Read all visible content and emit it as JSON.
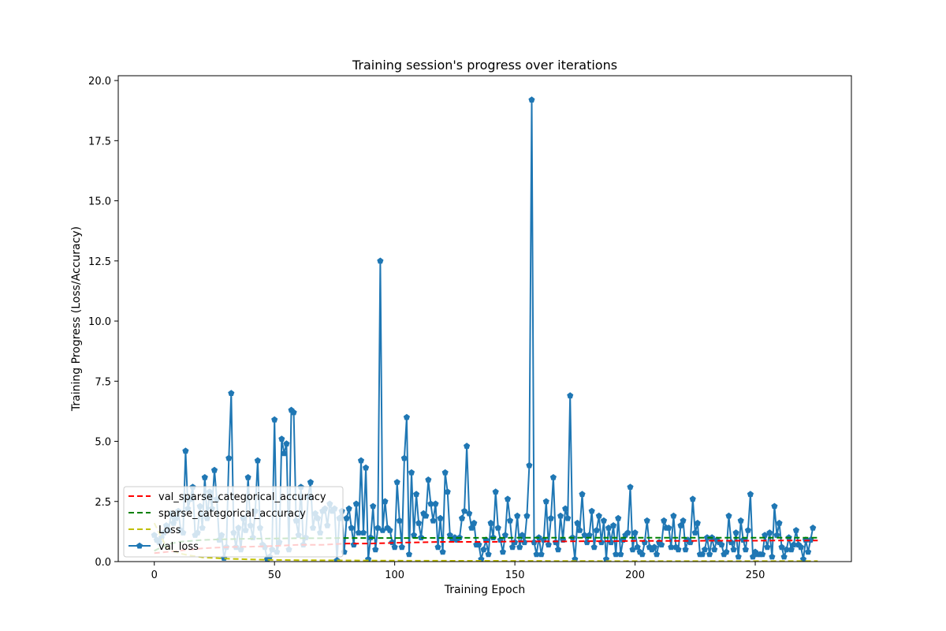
{
  "chart_data": {
    "type": "line",
    "title": "Training session's progress over iterations",
    "xlabel": "Training Epoch",
    "ylabel": "Training Progress (Loss/Accuracy)",
    "xlim": [
      -15,
      290
    ],
    "ylim": [
      0,
      20.2
    ],
    "xticks": [
      0,
      50,
      100,
      150,
      200,
      250
    ],
    "yticks": [
      0.0,
      2.5,
      5.0,
      7.5,
      10.0,
      12.5,
      15.0,
      17.5,
      20.0
    ],
    "ytick_labels": [
      "0.0",
      "2.5",
      "5.0",
      "7.5",
      "10.0",
      "12.5",
      "15.0",
      "17.5",
      "20.0"
    ],
    "grid": false,
    "legend_position": "lower-left",
    "series": [
      {
        "name": "val_sparse_categorical_accuracy",
        "color": "#ff0000",
        "style": "dashed",
        "x": [
          0,
          10,
          20,
          30,
          40,
          50,
          60,
          70,
          80,
          90,
          100,
          110,
          120,
          130,
          140,
          150,
          160,
          170,
          180,
          190,
          200,
          210,
          220,
          230,
          240,
          250,
          260,
          270,
          276
        ],
        "values": [
          0.35,
          0.45,
          0.55,
          0.6,
          0.62,
          0.65,
          0.7,
          0.7,
          0.75,
          0.75,
          0.78,
          0.8,
          0.82,
          0.82,
          0.82,
          0.84,
          0.84,
          0.84,
          0.85,
          0.85,
          0.86,
          0.86,
          0.86,
          0.87,
          0.87,
          0.87,
          0.88,
          0.88,
          0.88
        ]
      },
      {
        "name": "sparse_categorical_accuracy",
        "color": "#008000",
        "style": "dashed",
        "x": [
          0,
          5,
          10,
          20,
          30,
          40,
          50,
          60,
          70,
          80,
          100,
          150,
          200,
          250,
          276
        ],
        "values": [
          0.45,
          0.7,
          0.82,
          0.9,
          0.93,
          0.95,
          0.96,
          0.97,
          0.97,
          0.98,
          0.98,
          0.99,
          0.99,
          0.99,
          0.99
        ]
      },
      {
        "name": "Loss",
        "color": "#bfbf00",
        "style": "dashed",
        "x": [
          0,
          5,
          10,
          15,
          20,
          30,
          40,
          50,
          60,
          80,
          100,
          150,
          200,
          250,
          276
        ],
        "values": [
          1.6,
          0.6,
          0.35,
          0.25,
          0.18,
          0.12,
          0.09,
          0.07,
          0.06,
          0.05,
          0.04,
          0.03,
          0.02,
          0.02,
          0.02
        ]
      },
      {
        "name": "val_loss",
        "color": "#1f77b4",
        "style": "solid",
        "marker": "pentagon",
        "x_start": 0,
        "x_step": 1,
        "values": [
          1.1,
          0.9,
          0.8,
          1.0,
          1.2,
          1.5,
          1.3,
          2.0,
          1.6,
          1.8,
          2.1,
          1.3,
          1.2,
          4.6,
          2.2,
          2.6,
          3.1,
          1.1,
          1.2,
          2.3,
          1.4,
          3.5,
          1.8,
          2.9,
          2.2,
          3.8,
          2.6,
          0.9,
          1.1,
          0.15,
          0.6,
          4.3,
          7.0,
          1.2,
          0.6,
          1.4,
          0.5,
          1.8,
          1.3,
          3.5,
          1.5,
          1.0,
          2.1,
          4.2,
          1.4,
          0.7,
          0.6,
          0.1,
          0.2,
          0.5,
          5.9,
          0.4,
          0.8,
          5.1,
          4.5,
          4.9,
          0.5,
          6.3,
          6.2,
          1.7,
          1.1,
          3.1,
          0.7,
          1.0,
          2.7,
          3.3,
          1.4,
          2.0,
          1.8,
          1.2,
          2.1,
          2.2,
          1.5,
          2.4,
          2.1,
          2.2,
          0.05,
          1.8,
          2.1,
          0.4,
          1.8,
          2.2,
          1.4,
          0.7,
          2.4,
          1.2,
          4.2,
          1.2,
          3.9,
          0.1,
          1.0,
          2.3,
          0.5,
          1.4,
          12.5,
          1.3,
          2.5,
          1.4,
          1.3,
          0.8,
          0.6,
          3.3,
          1.7,
          0.6,
          4.3,
          6.0,
          0.3,
          3.7,
          1.1,
          2.8,
          1.6,
          1.0,
          2.0,
          1.9,
          3.4,
          2.4,
          1.7,
          2.4,
          0.6,
          1.8,
          0.4,
          3.7,
          2.9,
          1.1,
          0.9,
          1.0,
          0.9,
          1.0,
          1.8,
          2.1,
          4.8,
          2.0,
          1.4,
          1.6,
          0.7,
          0.7,
          0.1,
          0.5,
          0.9,
          0.3,
          1.6,
          1.0,
          2.9,
          1.4,
          0.9,
          0.4,
          1.1,
          2.6,
          1.7,
          0.6,
          0.8,
          1.9,
          0.6,
          1.1,
          0.8,
          1.9,
          4.0,
          19.2,
          0.8,
          0.3,
          1.0,
          0.3,
          0.9,
          2.5,
          0.7,
          1.8,
          3.5,
          0.8,
          0.5,
          1.9,
          0.9,
          2.2,
          1.8,
          6.9,
          1.0,
          0.1,
          1.6,
          1.3,
          2.8,
          1.1,
          0.8,
          1.1,
          2.1,
          0.6,
          1.3,
          1.9,
          0.8,
          1.7,
          0.1,
          1.4,
          0.8,
          1.5,
          0.3,
          1.8,
          0.3,
          0.9,
          1.1,
          1.2,
          3.1,
          0.5,
          1.2,
          0.6,
          0.4,
          0.3,
          0.8,
          1.7,
          0.6,
          0.5,
          0.6,
          0.3,
          0.8,
          0.7,
          1.7,
          1.4,
          1.4,
          0.6,
          1.9,
          0.6,
          0.5,
          1.5,
          1.7,
          0.5,
          0.9,
          0.8,
          2.6,
          1.2,
          1.6,
          0.3,
          0.3,
          0.5,
          1.0,
          0.3,
          1.0,
          0.5,
          0.9,
          0.8,
          0.7,
          0.3,
          0.4,
          1.9,
          0.8,
          0.5,
          1.2,
          0.2,
          1.7,
          0.9,
          0.5,
          1.3,
          2.8,
          0.2,
          0.4,
          0.3,
          0.3,
          0.3,
          1.1,
          0.6,
          1.2,
          0.2,
          2.3,
          1.1,
          1.6,
          0.6,
          0.2,
          0.5,
          1.0,
          0.5,
          0.7,
          1.3,
          0.7,
          0.6,
          0.1,
          0.9,
          0.4,
          0.9,
          1.4
        ]
      }
    ]
  }
}
